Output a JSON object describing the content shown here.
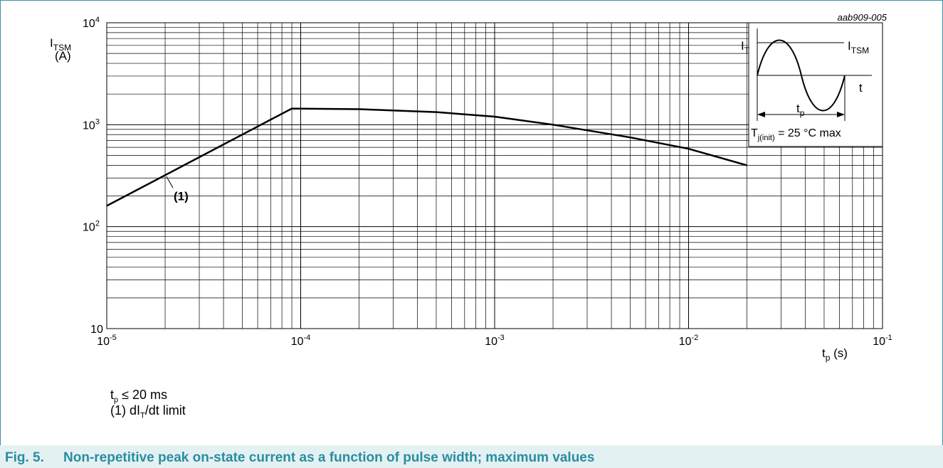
{
  "figure_id": "aab909-005",
  "caption": {
    "number": "Fig. 5.",
    "text": "Non-repetitive peak on-state current as a function of pulse width; maximum values"
  },
  "notes": {
    "tp_var": "t",
    "tp_sub": "p",
    "tp_text": " ≤ 20 ms",
    "limit_prefix": "(1) dI",
    "limit_sub": "T",
    "limit_text": "/dt limit"
  },
  "chart_data": {
    "type": "line",
    "xscale": "log",
    "yscale": "log",
    "xlim": [
      1e-05,
      0.1
    ],
    "ylim": [
      10,
      10000
    ],
    "grid": true,
    "x_ticks": [
      {
        "base": "10",
        "exp": "-5"
      },
      {
        "base": "10",
        "exp": "-4"
      },
      {
        "base": "10",
        "exp": "-3"
      },
      {
        "base": "10",
        "exp": "-2"
      },
      {
        "base": "10",
        "exp": "-1"
      }
    ],
    "y_ticks": [
      {
        "base": "10",
        "exp": ""
      },
      {
        "base": "10",
        "exp": "2"
      },
      {
        "base": "10",
        "exp": "3"
      },
      {
        "base": "10",
        "exp": "4"
      }
    ],
    "xlabel": {
      "var": "t",
      "sub": "p",
      "unit": " (s)"
    },
    "ylabel": {
      "var": "I",
      "sub": "TSM",
      "unit": "(A)"
    },
    "series": [
      {
        "x": [
          1e-05,
          2e-05,
          5e-05,
          9e-05,
          0.0002,
          0.0005,
          0.001,
          0.002,
          0.005,
          0.01,
          0.02
        ],
        "y": [
          160,
          320,
          800,
          1440,
          1420,
          1330,
          1200,
          1000,
          750,
          580,
          400
        ]
      }
    ],
    "annotations": [
      {
        "label": "(1)",
        "x": 2e-05,
        "y": 320
      }
    ],
    "inset": {
      "it_var": "I",
      "it_sub": "T",
      "itsm_var": "I",
      "itsm_sub": "TSM",
      "t_label": "t",
      "tp_var": "t",
      "tp_sub": "p",
      "tj_var": "T",
      "tj_sub": "j(init)",
      "tj_text": " = 25 °C max"
    }
  }
}
